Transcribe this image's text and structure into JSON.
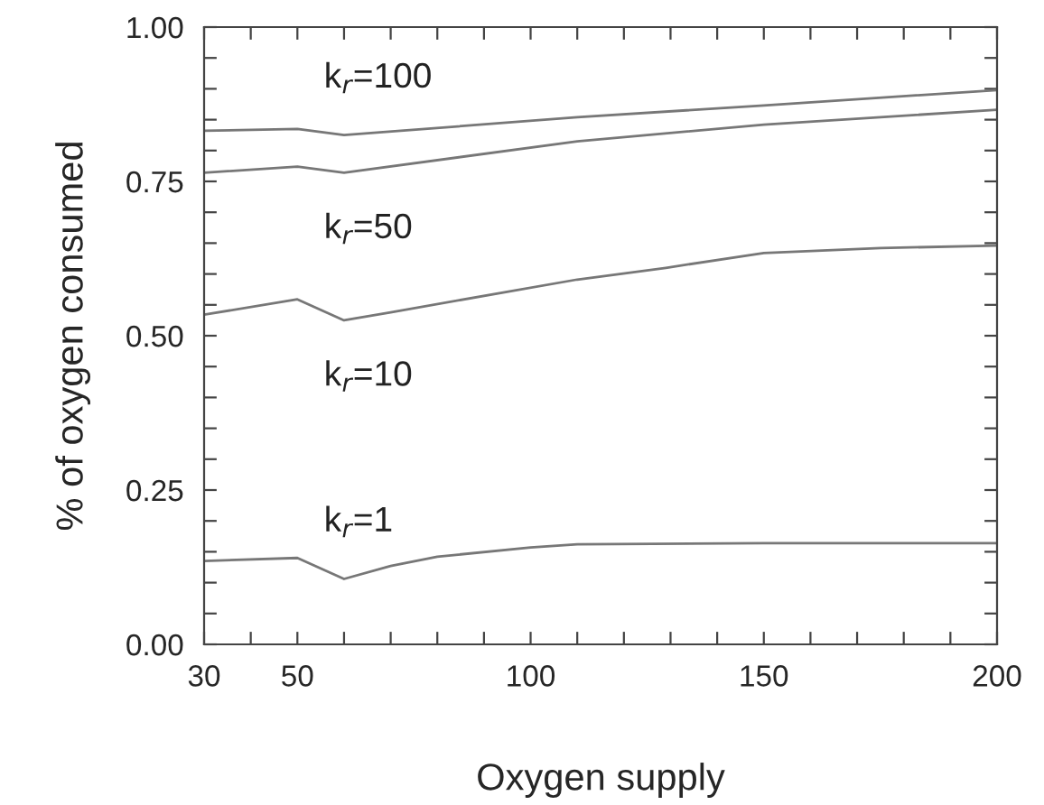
{
  "chart_data": {
    "type": "line",
    "xlabel": "Oxygen supply",
    "ylabel": "% of oxygen consumed",
    "xlim": [
      30,
      200
    ],
    "ylim": [
      0,
      1
    ],
    "xticks": [
      30,
      {
        "value": 40,
        "label": null
      },
      50,
      {
        "value": 60,
        "label": null
      },
      {
        "value": 70,
        "label": null
      },
      {
        "value": 80,
        "label": null
      },
      {
        "value": 90,
        "label": null
      },
      100,
      {
        "value": 110,
        "label": null
      },
      {
        "value": 120,
        "label": null
      },
      {
        "value": 130,
        "label": null
      },
      {
        "value": 140,
        "label": null
      },
      150,
      {
        "value": 160,
        "label": null
      },
      {
        "value": 170,
        "label": null
      },
      {
        "value": 180,
        "label": null
      },
      {
        "value": 190,
        "label": null
      },
      200
    ],
    "yticks": [
      {
        "value": 0,
        "label": "0.00"
      },
      {
        "value": 0.05,
        "label": null
      },
      {
        "value": 0.1,
        "label": null
      },
      {
        "value": 0.15,
        "label": null
      },
      {
        "value": 0.2,
        "label": null
      },
      {
        "value": 0.25,
        "label": "0.25"
      },
      {
        "value": 0.3,
        "label": null
      },
      {
        "value": 0.35,
        "label": null
      },
      {
        "value": 0.4,
        "label": null
      },
      {
        "value": 0.45,
        "label": null
      },
      {
        "value": 0.5,
        "label": "0.50"
      },
      {
        "value": 0.55,
        "label": null
      },
      {
        "value": 0.6,
        "label": null
      },
      {
        "value": 0.65,
        "label": null
      },
      {
        "value": 0.7,
        "label": null
      },
      {
        "value": 0.75,
        "label": "0.75"
      },
      {
        "value": 0.8,
        "label": null
      },
      {
        "value": 0.85,
        "label": null
      },
      {
        "value": 0.9,
        "label": null
      },
      {
        "value": 0.95,
        "label": null
      },
      {
        "value": 1,
        "label": "1.00"
      }
    ],
    "grid": false,
    "legend": false,
    "marker": "none",
    "line_style": "solid",
    "series": [
      {
        "name": "k$_{r}$=100",
        "color": "#777777",
        "x": [
          30,
          50,
          60,
          110,
          150,
          200
        ],
        "values": [
          0.832,
          0.835,
          0.825,
          0.854,
          0.873,
          0.898
        ]
      },
      {
        "name": "k$_{r}$=50",
        "color": "#777777",
        "x": [
          30,
          50,
          60,
          110,
          150,
          200
        ],
        "values": [
          0.764,
          0.774,
          0.764,
          0.815,
          0.842,
          0.866
        ]
      },
      {
        "name": "k$_{r}$=10",
        "color": "#777777",
        "x": [
          30,
          50,
          60,
          70,
          110,
          129,
          150,
          175,
          200
        ],
        "values": [
          0.534,
          0.559,
          0.525,
          0.538,
          0.591,
          0.61,
          0.634,
          0.642,
          0.646
        ]
      },
      {
        "name": "k$_{r}$=1",
        "color": "#777777",
        "x": [
          30,
          50,
          60,
          70,
          80,
          100,
          110,
          150,
          200
        ],
        "values": [
          0.135,
          0.14,
          0.106,
          0.127,
          0.142,
          0.157,
          0.162,
          0.164,
          0.164
        ]
      }
    ]
  }
}
